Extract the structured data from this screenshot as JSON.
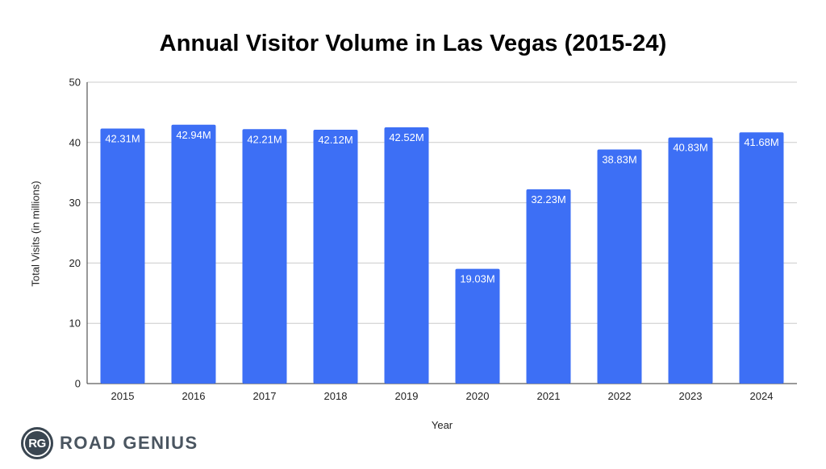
{
  "chart_data": {
    "type": "bar",
    "title": "Annual Visitor Volume in Las Vegas (2015-24)",
    "xlabel": "Year",
    "ylabel": "Total Visits (in millions)",
    "categories": [
      "2015",
      "2016",
      "2017",
      "2018",
      "2019",
      "2020",
      "2021",
      "2022",
      "2023",
      "2024"
    ],
    "values": [
      42.31,
      42.94,
      42.21,
      42.12,
      42.52,
      19.03,
      32.23,
      38.83,
      40.83,
      41.68
    ],
    "data_labels": [
      "42.31M",
      "42.94M",
      "42.21M",
      "42.12M",
      "42.52M",
      "19.03M",
      "32.23M",
      "38.83M",
      "40.83M",
      "41.68M"
    ],
    "ylim": [
      0,
      50
    ],
    "yticks": [
      0,
      10,
      20,
      30,
      40,
      50
    ],
    "grid": true,
    "legend": "none",
    "bar_color": "#3d6ff5",
    "label_color": "#ffffff"
  },
  "brand": {
    "badge": "RG",
    "name": "ROAD GENIUS"
  }
}
